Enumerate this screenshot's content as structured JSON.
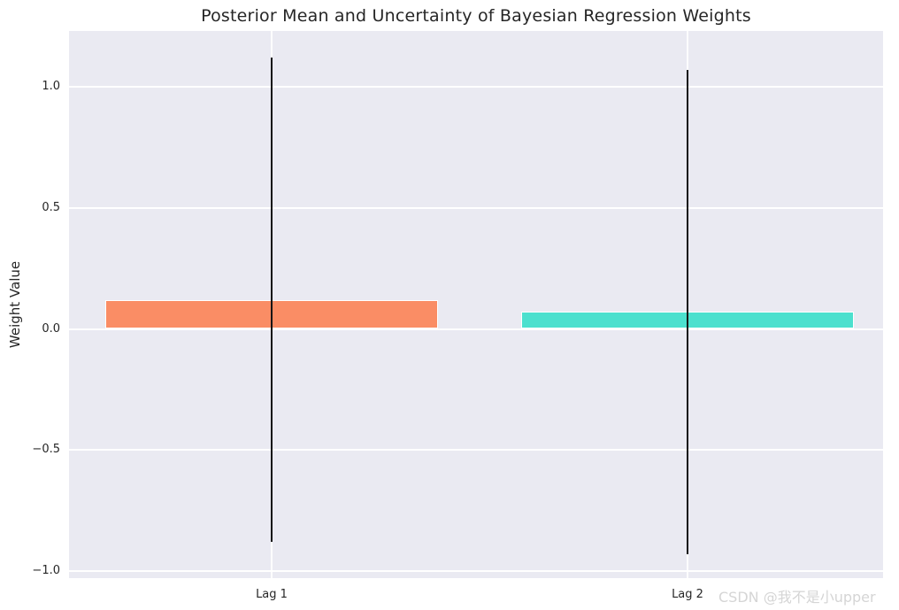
{
  "title": "Posterior Mean and Uncertainty of Bayesian Regression Weights",
  "watermark": "CSDN @我不是小upper",
  "chart_data": {
    "type": "bar",
    "title": "Posterior Mean and Uncertainty of Bayesian Regression Weights",
    "xlabel": "",
    "ylabel": "Weight Value",
    "categories": [
      "Lag 1",
      "Lag 2"
    ],
    "values": [
      0.12,
      0.07
    ],
    "error_bars": {
      "description": "posterior uncertainty, approx ±1 standard deviation",
      "intervals": [
        [
          -0.88,
          1.12
        ],
        [
          -0.93,
          1.07
        ]
      ]
    },
    "bar_colors": [
      "#FA8D65",
      "#4CE0CE"
    ],
    "error_bar_color": "#141414",
    "yticks": [
      1.0,
      0.5,
      0.0,
      -0.5,
      -1.0
    ],
    "ytick_labels": [
      "1.0",
      "0.5",
      "0.0",
      "−0.5",
      "−1.0"
    ],
    "ylim": [
      -1.03,
      1.23
    ],
    "grid": true,
    "grid_color": "#FFFFFF",
    "plot_background": "#EAEAF2",
    "figure_background": "#FFFFFF",
    "legend": null
  }
}
